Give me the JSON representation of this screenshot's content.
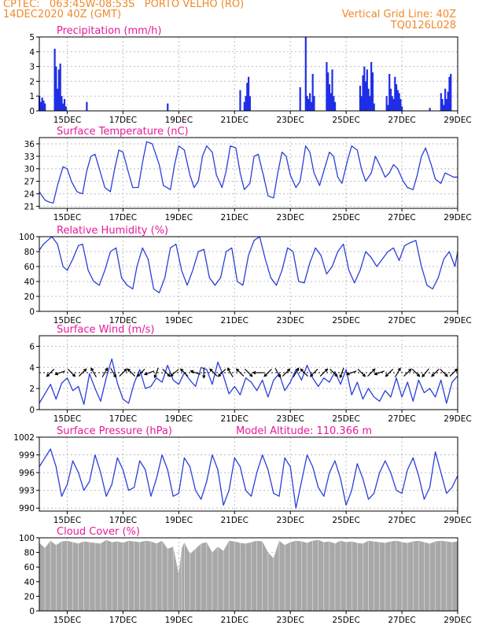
{
  "header": {
    "line1_left": "CPTEC:   063:45W-08:53S   PORTO VELHO (RO)",
    "line2_left": "14DEC2020 40Z (GMT)",
    "line2_right": "Vertical Grid Line: 40Z",
    "line3_right": "TQ0126L028"
  },
  "colors": {
    "header": "#ee8a2a",
    "title": "#e8189a",
    "line": "#2a3fd8",
    "bar": "#1f2ee6",
    "cloud": "#a8a8a8",
    "grid": "#bdbdbd"
  },
  "x_axis": {
    "start_day": 14,
    "end_day": 29,
    "ticks": [
      15,
      17,
      19,
      21,
      23,
      25,
      27,
      29
    ],
    "tick_labels": [
      "15DEC",
      "17DEC",
      "19DEC",
      "21DEC",
      "23DEC",
      "25DEC",
      "27DEC",
      "29DEC"
    ]
  },
  "chart_data": [
    {
      "id": "precip",
      "type": "bar",
      "title": "Precipitation (mm/h)",
      "ylim": [
        0,
        5
      ],
      "yticks": [
        0,
        1,
        2,
        3,
        4,
        5
      ],
      "x": [
        14.0,
        14.05,
        14.1,
        14.15,
        14.2,
        14.55,
        14.6,
        14.65,
        14.7,
        14.75,
        14.8,
        14.85,
        14.9,
        14.95,
        15.7,
        18.6,
        21.2,
        21.35,
        21.4,
        21.45,
        21.5,
        21.55,
        23.35,
        23.55,
        23.6,
        23.65,
        23.7,
        23.75,
        23.8,
        23.85,
        24.3,
        24.35,
        24.4,
        24.45,
        24.5,
        24.55,
        24.6,
        25.5,
        25.55,
        25.6,
        25.65,
        25.7,
        25.75,
        25.8,
        25.85,
        25.9,
        25.95,
        26.0,
        26.45,
        26.5,
        26.55,
        26.6,
        26.65,
        26.7,
        26.75,
        26.8,
        26.85,
        26.9,
        26.95,
        27.0,
        28.0,
        28.4,
        28.45,
        28.5,
        28.55,
        28.6,
        28.65,
        28.7,
        28.75
      ],
      "values": [
        1.0,
        0.6,
        0.9,
        0.7,
        0.5,
        4.2,
        3.0,
        1.5,
        2.8,
        3.2,
        1.0,
        0.5,
        0.8,
        0.3,
        0.6,
        0.5,
        1.4,
        0.6,
        1.0,
        1.9,
        2.3,
        1.0,
        1.6,
        5.0,
        1.0,
        0.8,
        1.2,
        0.6,
        2.5,
        1.0,
        3.3,
        2.6,
        1.8,
        1.2,
        2.8,
        1.0,
        0.6,
        1.7,
        1.0,
        2.4,
        3.0,
        2.0,
        2.8,
        1.5,
        1.0,
        3.3,
        2.6,
        0.5,
        1.0,
        0.4,
        2.5,
        1.5,
        1.0,
        0.8,
        2.3,
        1.8,
        1.4,
        1.2,
        0.8,
        0.3,
        0.2,
        1.2,
        0.8,
        0.4,
        1.5,
        0.8,
        1.3,
        2.3,
        2.5
      ]
    },
    {
      "id": "temp",
      "type": "line",
      "title": "Surface Temperature (nC)",
      "ylim": [
        20.5,
        37.5
      ],
      "yticks": [
        21,
        24,
        27,
        30,
        33,
        36
      ],
      "x": [
        14.0,
        14.2,
        14.35,
        14.5,
        14.65,
        14.85,
        15.0,
        15.15,
        15.35,
        15.55,
        15.7,
        15.85,
        16.0,
        16.15,
        16.35,
        16.55,
        16.7,
        16.85,
        17.0,
        17.2,
        17.35,
        17.55,
        17.7,
        17.85,
        18.05,
        18.3,
        18.45,
        18.7,
        18.85,
        19.0,
        19.2,
        19.4,
        19.55,
        19.7,
        19.85,
        20.0,
        20.2,
        20.35,
        20.55,
        20.7,
        20.85,
        21.05,
        21.2,
        21.35,
        21.55,
        21.7,
        21.85,
        22.05,
        22.2,
        22.4,
        22.55,
        22.7,
        22.85,
        23.0,
        23.2,
        23.35,
        23.55,
        23.7,
        23.85,
        24.05,
        24.2,
        24.4,
        24.55,
        24.7,
        24.85,
        25.05,
        25.2,
        25.4,
        25.55,
        25.7,
        25.9,
        26.05,
        26.2,
        26.4,
        26.55,
        26.7,
        26.85,
        27.05,
        27.2,
        27.4,
        27.55,
        27.7,
        27.85,
        28.05,
        28.2,
        28.4,
        28.55,
        28.7,
        28.85,
        29.0
      ],
      "values": [
        24.5,
        22.5,
        22.0,
        21.8,
        26.0,
        30.5,
        30.0,
        27.0,
        24.5,
        24.0,
        29.5,
        33.0,
        33.5,
        30.0,
        25.5,
        24.5,
        30.0,
        34.5,
        34.0,
        29.0,
        25.5,
        25.5,
        31.5,
        36.5,
        36.0,
        31.0,
        26.0,
        25.0,
        31.0,
        35.5,
        34.5,
        28.5,
        25.5,
        27.0,
        33.0,
        35.5,
        34.0,
        28.5,
        25.5,
        29.5,
        35.5,
        35.0,
        29.0,
        25.0,
        26.5,
        33.0,
        33.5,
        28.0,
        23.5,
        23.0,
        29.0,
        34.0,
        33.0,
        28.5,
        25.5,
        27.0,
        35.5,
        34.0,
        29.0,
        26.0,
        29.5,
        34.0,
        33.0,
        28.0,
        26.5,
        32.0,
        35.5,
        34.5,
        30.0,
        27.0,
        29.0,
        33.0,
        31.0,
        28.0,
        29.0,
        31.0,
        30.0,
        27.0,
        25.5,
        25.0,
        28.5,
        33.0,
        35.0,
        31.0,
        27.5,
        26.5,
        29.0,
        28.5,
        28.0,
        28.0
      ]
    },
    {
      "id": "rh",
      "type": "line",
      "title": "Relative Humidity (%)",
      "ylim": [
        0,
        100
      ],
      "yticks": [
        0,
        20,
        40,
        60,
        80,
        100
      ],
      "x": [
        14.0,
        14.15,
        14.3,
        14.45,
        14.65,
        14.85,
        15.0,
        15.2,
        15.4,
        15.55,
        15.75,
        15.95,
        16.15,
        16.35,
        16.55,
        16.75,
        16.95,
        17.15,
        17.35,
        17.5,
        17.7,
        17.9,
        18.1,
        18.3,
        18.5,
        18.7,
        18.9,
        19.1,
        19.3,
        19.5,
        19.7,
        19.9,
        20.1,
        20.3,
        20.5,
        20.7,
        20.9,
        21.1,
        21.3,
        21.5,
        21.7,
        21.9,
        22.1,
        22.3,
        22.5,
        22.7,
        22.9,
        23.1,
        23.3,
        23.5,
        23.7,
        23.9,
        24.1,
        24.3,
        24.5,
        24.7,
        24.9,
        25.1,
        25.3,
        25.5,
        25.7,
        25.9,
        26.1,
        26.3,
        26.5,
        26.7,
        26.9,
        27.1,
        27.3,
        27.5,
        27.7,
        27.9,
        28.1,
        28.3,
        28.5,
        28.7,
        28.9,
        29.0
      ],
      "values": [
        82,
        90,
        95,
        100,
        90,
        60,
        55,
        70,
        88,
        90,
        55,
        40,
        35,
        55,
        80,
        85,
        45,
        35,
        30,
        60,
        85,
        70,
        30,
        25,
        45,
        85,
        90,
        55,
        35,
        55,
        80,
        83,
        45,
        35,
        45,
        80,
        85,
        40,
        35,
        75,
        95,
        100,
        70,
        45,
        35,
        55,
        85,
        80,
        40,
        38,
        65,
        85,
        75,
        50,
        60,
        80,
        90,
        55,
        38,
        55,
        80,
        72,
        60,
        70,
        80,
        85,
        68,
        88,
        92,
        95,
        60,
        35,
        30,
        45,
        70,
        80,
        60,
        80
      ]
    },
    {
      "id": "wind",
      "type": "line",
      "title": "Surface Wind (m/s)",
      "ylim": [
        0,
        7
      ],
      "yticks": [
        0,
        2,
        4,
        6
      ],
      "x": [
        14.0,
        14.2,
        14.4,
        14.6,
        14.8,
        15.0,
        15.2,
        15.4,
        15.6,
        15.8,
        16.0,
        16.2,
        16.4,
        16.6,
        16.8,
        17.0,
        17.2,
        17.4,
        17.6,
        17.8,
        18.0,
        18.2,
        18.4,
        18.6,
        18.8,
        19.0,
        19.2,
        19.4,
        19.6,
        19.8,
        20.0,
        20.2,
        20.4,
        20.6,
        20.8,
        21.0,
        21.2,
        21.4,
        21.6,
        21.8,
        22.0,
        22.2,
        22.4,
        22.6,
        22.8,
        23.0,
        23.2,
        23.4,
        23.6,
        23.8,
        24.0,
        24.2,
        24.4,
        24.6,
        24.8,
        25.0,
        25.2,
        25.4,
        25.6,
        25.8,
        26.0,
        26.2,
        26.4,
        26.6,
        26.8,
        27.0,
        27.2,
        27.4,
        27.6,
        27.8,
        28.0,
        28.2,
        28.4,
        28.6,
        28.8,
        29.0
      ],
      "values": [
        0.6,
        1.5,
        2.4,
        1.0,
        2.5,
        3.0,
        1.8,
        2.2,
        0.5,
        3.4,
        2.0,
        0.8,
        3.0,
        4.8,
        2.5,
        1.0,
        0.6,
        2.5,
        3.8,
        2.0,
        2.2,
        3.0,
        2.6,
        4.2,
        2.8,
        2.4,
        3.5,
        2.8,
        2.2,
        4.0,
        3.8,
        2.4,
        4.5,
        3.2,
        1.5,
        2.2,
        1.4,
        3.0,
        2.6,
        1.8,
        2.8,
        1.2,
        2.8,
        3.4,
        1.8,
        2.6,
        3.8,
        2.8,
        4.2,
        3.0,
        2.2,
        3.0,
        2.6,
        3.6,
        2.4,
        3.8,
        1.4,
        2.6,
        1.0,
        2.0,
        1.2,
        0.8,
        1.8,
        1.2,
        3.0,
        1.2,
        2.6,
        0.8,
        2.8,
        1.6,
        2.0,
        1.2,
        2.8,
        0.6,
        2.6,
        3.2
      ]
    },
    {
      "id": "pres",
      "type": "line",
      "title": "Surface Pressure (hPa)",
      "annotation": "Model Altitude: 110.366 m",
      "ylim": [
        989.5,
        1002
      ],
      "yticks": [
        990,
        993,
        996,
        999,
        1002
      ],
      "x": [
        14.0,
        14.2,
        14.4,
        14.6,
        14.8,
        15.0,
        15.2,
        15.4,
        15.6,
        15.8,
        16.0,
        16.2,
        16.4,
        16.6,
        16.8,
        17.0,
        17.2,
        17.4,
        17.6,
        17.8,
        18.0,
        18.2,
        18.4,
        18.6,
        18.8,
        19.0,
        19.2,
        19.4,
        19.6,
        19.8,
        20.0,
        20.2,
        20.4,
        20.6,
        20.8,
        21.0,
        21.2,
        21.4,
        21.6,
        21.8,
        22.0,
        22.2,
        22.4,
        22.6,
        22.8,
        23.0,
        23.2,
        23.4,
        23.6,
        23.8,
        24.0,
        24.2,
        24.4,
        24.6,
        24.8,
        25.0,
        25.2,
        25.4,
        25.6,
        25.8,
        26.0,
        26.2,
        26.4,
        26.6,
        26.8,
        27.0,
        27.2,
        27.4,
        27.6,
        27.8,
        28.0,
        28.2,
        28.4,
        28.6,
        28.8,
        29.0
      ],
      "values": [
        997.0,
        998.5,
        1000.0,
        997.0,
        992.0,
        994.0,
        998.0,
        996.0,
        993.0,
        994.5,
        999.0,
        996.0,
        992.0,
        994.0,
        998.5,
        996.5,
        993.0,
        993.5,
        998.0,
        996.5,
        992.0,
        995.0,
        999.0,
        996.5,
        992.0,
        992.5,
        998.5,
        997.0,
        993.0,
        991.5,
        994.5,
        999.0,
        996.5,
        990.5,
        993.0,
        998.5,
        997.0,
        993.0,
        992.0,
        996.0,
        999.0,
        996.5,
        992.5,
        992.0,
        998.5,
        997.0,
        990.0,
        994.5,
        999.0,
        997.0,
        993.5,
        992.0,
        996.0,
        998.0,
        995.0,
        990.5,
        993.0,
        997.5,
        995.0,
        991.5,
        992.5,
        996.0,
        998.0,
        996.0,
        993.0,
        992.5,
        996.5,
        998.5,
        995.5,
        991.5,
        993.5,
        999.5,
        996.0,
        992.5,
        993.5,
        995.5
      ]
    },
    {
      "id": "cloud",
      "type": "area",
      "title": "Cloud Cover (%)",
      "ylim": [
        0,
        100
      ],
      "yticks": [
        0,
        20,
        40,
        60,
        80,
        100
      ],
      "x": [
        14.0,
        14.2,
        14.4,
        14.6,
        14.8,
        15.0,
        15.2,
        15.4,
        15.6,
        15.8,
        16.0,
        16.2,
        16.4,
        16.6,
        16.8,
        17.0,
        17.2,
        17.4,
        17.6,
        17.8,
        18.0,
        18.2,
        18.4,
        18.6,
        18.8,
        19.0,
        19.1,
        19.2,
        19.4,
        19.6,
        19.8,
        20.0,
        20.2,
        20.4,
        20.6,
        20.8,
        21.0,
        21.2,
        21.4,
        21.6,
        21.8,
        22.0,
        22.2,
        22.4,
        22.6,
        22.8,
        23.0,
        23.2,
        23.4,
        23.6,
        23.8,
        24.0,
        24.2,
        24.4,
        24.6,
        24.8,
        25.0,
        25.2,
        25.4,
        25.6,
        25.8,
        26.0,
        26.2,
        26.4,
        26.6,
        26.8,
        27.0,
        27.2,
        27.4,
        27.6,
        27.8,
        28.0,
        28.2,
        28.4,
        28.6,
        28.8,
        29.0
      ],
      "values": [
        93,
        86,
        96,
        90,
        95,
        96,
        94,
        92,
        95,
        94,
        93,
        92,
        97,
        94,
        95,
        93,
        96,
        95,
        94,
        96,
        95,
        92,
        96,
        85,
        88,
        50,
        85,
        94,
        78,
        85,
        92,
        94,
        80,
        88,
        82,
        96,
        95,
        93,
        92,
        94,
        96,
        95,
        80,
        72,
        96,
        90,
        94,
        96,
        95,
        93,
        96,
        97,
        94,
        95,
        92,
        96,
        94,
        95,
        93,
        92,
        96,
        95,
        94,
        93,
        95,
        96,
        94,
        93,
        95,
        96,
        94,
        92,
        95,
        96,
        95,
        94,
        95
      ]
    }
  ],
  "wind_arrows": {
    "x": [
      14.4,
      14.75,
      15.15,
      15.55,
      15.95,
      16.35,
      16.65,
      17.0,
      17.3,
      17.65,
      17.95,
      18.2,
      18.55,
      18.85,
      19.2,
      19.6,
      19.9,
      20.25,
      20.55,
      20.85,
      21.2,
      21.5,
      21.85,
      22.2,
      22.55,
      22.85,
      23.2,
      23.5,
      23.85,
      24.2,
      24.55,
      24.85,
      25.2,
      25.55,
      25.9,
      26.2,
      26.55,
      26.85,
      27.2,
      27.5,
      27.85,
      28.2,
      28.5,
      28.85
    ],
    "dir_deg": [
      225,
      200,
      315,
      45,
      120,
      60,
      300,
      45,
      135,
      225,
      200,
      250,
      315,
      220,
      135,
      160,
      270,
      135,
      225,
      120,
      135,
      315,
      180,
      225,
      300,
      45,
      60,
      135,
      225,
      45,
      315,
      250,
      200,
      315,
      45,
      200,
      225,
      60,
      45,
      315,
      230,
      225,
      315,
      45
    ]
  }
}
